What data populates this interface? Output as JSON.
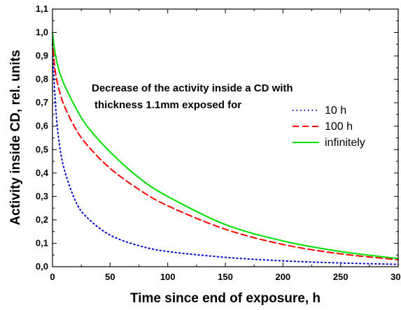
{
  "chart_data": {
    "type": "line",
    "title": "",
    "xlabel": "Time since end of exposure, h",
    "ylabel": "Activity inside CD, rel. units",
    "xlim": [
      0,
      300
    ],
    "ylim": [
      0.0,
      1.1
    ],
    "x_ticks": [
      "0",
      "50",
      "100",
      "150",
      "200",
      "250",
      "300"
    ],
    "y_ticks": [
      "0,0",
      "0,1",
      "0,2",
      "0,3",
      "0,4",
      "0,5",
      "0,6",
      "0,7",
      "0,8",
      "0,9",
      "1,0",
      "1,1"
    ],
    "grid": false,
    "legend_position": "right",
    "annotation": {
      "line1": "Decrease of the activity inside a CD with",
      "line2": "thickness 1.1mm exposed for"
    },
    "series": [
      {
        "name": "10 h",
        "color": "#0000cc",
        "style": "dotted",
        "x": [
          0,
          2,
          5,
          10,
          20,
          30,
          50,
          75,
          100,
          150,
          200,
          250,
          300
        ],
        "y": [
          0.95,
          0.74,
          0.56,
          0.42,
          0.28,
          0.21,
          0.135,
          0.09,
          0.065,
          0.04,
          0.025,
          0.016,
          0.01
        ]
      },
      {
        "name": "100 h",
        "color": "#ff0000",
        "style": "dashed",
        "x": [
          0,
          2,
          5,
          10,
          20,
          30,
          50,
          75,
          100,
          150,
          200,
          250,
          300
        ],
        "y": [
          0.97,
          0.85,
          0.77,
          0.69,
          0.59,
          0.52,
          0.42,
          0.33,
          0.26,
          0.16,
          0.095,
          0.055,
          0.03
        ]
      },
      {
        "name": "infinitely",
        "color": "#00e000",
        "style": "solid",
        "x": [
          0,
          2,
          5,
          10,
          20,
          30,
          50,
          75,
          100,
          150,
          200,
          250,
          300
        ],
        "y": [
          1.0,
          0.92,
          0.85,
          0.78,
          0.68,
          0.6,
          0.49,
          0.38,
          0.3,
          0.18,
          0.11,
          0.065,
          0.035
        ]
      }
    ]
  }
}
